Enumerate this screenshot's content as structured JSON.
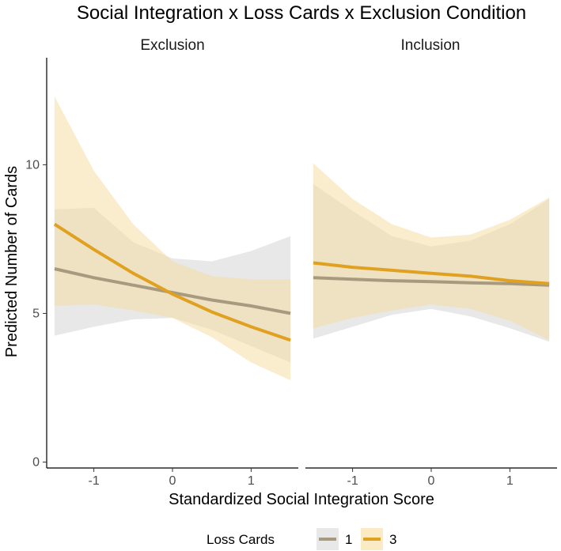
{
  "chart_data": {
    "type": "line",
    "title": "Social Integration x Loss Cards x Exclusion Condition",
    "xlabel": "Standardized Social Integration Score",
    "ylabel": "Predicted Number of Cards",
    "xlim": [
      -1.6,
      1.6
    ],
    "ylim": [
      -0.2,
      13.6
    ],
    "x_ticks": [
      -1,
      0,
      1
    ],
    "x_tick_labels": [
      "-1",
      "0",
      "1"
    ],
    "y_ticks": [
      0,
      5,
      10
    ],
    "y_tick_labels": [
      "0",
      "5",
      "10"
    ],
    "grid": false,
    "legend": {
      "title": "Loss Cards",
      "position": "bottom",
      "entries": [
        "1",
        "3"
      ]
    },
    "series_styles": [
      {
        "name": "1",
        "line_color": "#A89A7F",
        "band_color": "#D9D9D9",
        "band_opacity": 0.6
      },
      {
        "name": "3",
        "line_color": "#E0A020",
        "band_color": "#F5DC9C",
        "band_opacity": 0.5
      }
    ],
    "panels": [
      {
        "label": "Exclusion",
        "series": [
          {
            "name": "1",
            "x": [
              -1.5,
              -1.0,
              -0.5,
              0.0,
              0.5,
              1.0,
              1.5
            ],
            "y": [
              6.5,
              6.2,
              5.95,
              5.7,
              5.45,
              5.25,
              5.0
            ],
            "lower": [
              4.25,
              4.55,
              4.8,
              4.85,
              4.45,
              3.9,
              3.35
            ],
            "upper": [
              8.5,
              8.55,
              7.4,
              6.85,
              6.75,
              7.1,
              7.6
            ]
          },
          {
            "name": "3",
            "x": [
              -1.5,
              -1.0,
              -0.5,
              0.0,
              0.5,
              1.0,
              1.5
            ],
            "y": [
              8.0,
              7.15,
              6.35,
              5.65,
              5.05,
              4.55,
              4.1
            ],
            "lower": [
              5.25,
              5.3,
              5.1,
              4.85,
              4.2,
              3.35,
              2.75
            ],
            "upper": [
              12.3,
              9.8,
              8.0,
              6.75,
              6.25,
              6.15,
              6.15
            ]
          }
        ]
      },
      {
        "label": "Inclusion",
        "series": [
          {
            "name": "1",
            "x": [
              -1.5,
              -1.0,
              -0.5,
              0.0,
              0.5,
              1.0,
              1.5
            ],
            "y": [
              6.2,
              6.15,
              6.1,
              6.07,
              6.03,
              6.0,
              5.95
            ],
            "lower": [
              4.15,
              4.55,
              4.95,
              5.15,
              4.9,
              4.5,
              4.05
            ],
            "upper": [
              9.35,
              8.45,
              7.6,
              7.25,
              7.45,
              8.0,
              8.85
            ]
          },
          {
            "name": "3",
            "x": [
              -1.5,
              -1.0,
              -0.5,
              0.0,
              0.5,
              1.0,
              1.5
            ],
            "y": [
              6.7,
              6.55,
              6.45,
              6.35,
              6.25,
              6.1,
              6.0
            ],
            "lower": [
              4.5,
              4.85,
              5.1,
              5.3,
              5.15,
              4.75,
              4.1
            ],
            "upper": [
              10.05,
              8.85,
              8.0,
              7.55,
              7.65,
              8.15,
              8.9
            ]
          }
        ]
      }
    ]
  }
}
